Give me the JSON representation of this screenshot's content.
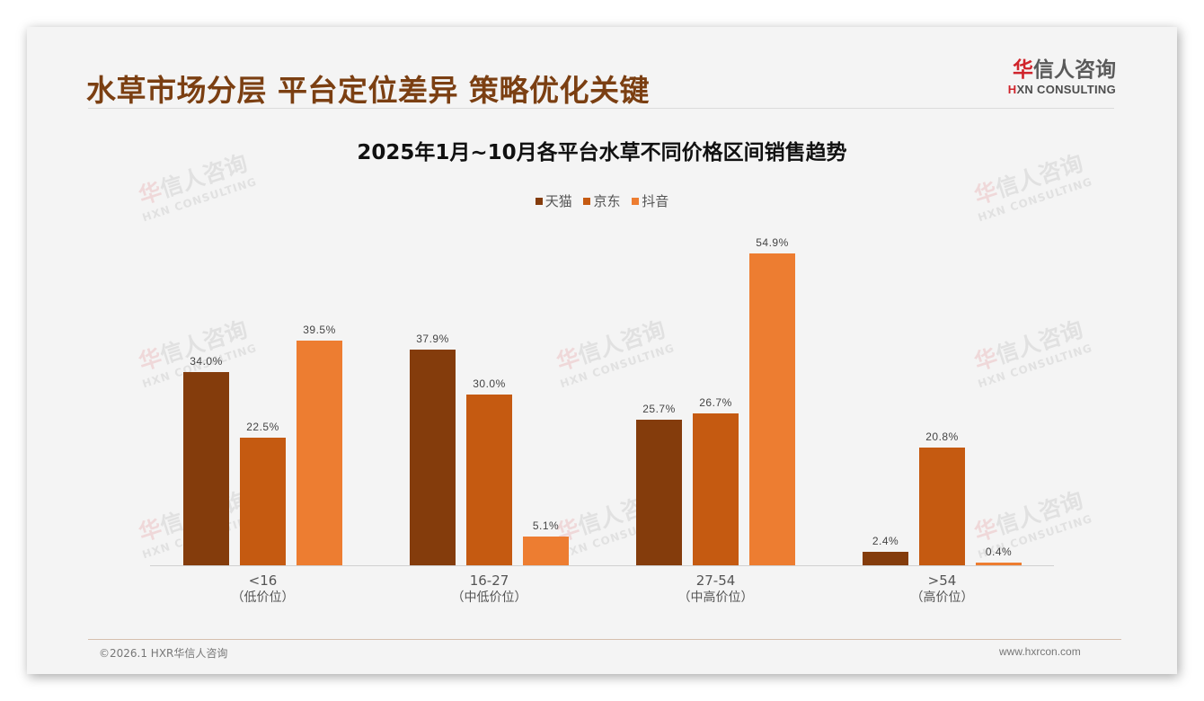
{
  "header": {
    "title": "水草市场分层 平台定位差异 策略优化关键",
    "logo": {
      "cn_mark": "华",
      "cn_rest": "信人咨询",
      "en_mark": "H",
      "en_rest": "XN CONSULTING"
    }
  },
  "colors": {
    "title": "#7b3f12",
    "tmall": "#843c0c",
    "jd": "#c55a11",
    "douyin": "#ed7d31",
    "logo_red": "#d0242b"
  },
  "watermark": {
    "cn_mark": "华",
    "cn_rest": "信人咨询",
    "en": "HXN CONSULTING"
  },
  "chart_data": {
    "type": "bar",
    "title": "2025年1月~10月各平台水草不同价格区间销售趋势",
    "xlabel": "",
    "ylabel": "",
    "ylim": [
      0,
      60
    ],
    "grid": false,
    "legend_position": "top",
    "categories": [
      "<16（低价位）",
      "16-27（中低价位）",
      "27-54（中高价位）",
      ">54（高价位）"
    ],
    "category_labels": [
      {
        "range": "<16",
        "tier": "（低价位）"
      },
      {
        "range": "16-27",
        "tier": "（中低价位）"
      },
      {
        "range": "27-54",
        "tier": "（中高价位）"
      },
      {
        "range": ">54",
        "tier": "（高价位）"
      }
    ],
    "series": [
      {
        "name": "天猫",
        "color": "#843c0c",
        "values": [
          34.0,
          37.9,
          25.7,
          2.4
        ],
        "labels": [
          "34.0%",
          "37.9%",
          "25.7%",
          "2.4%"
        ]
      },
      {
        "name": "京东",
        "color": "#c55a11",
        "values": [
          22.5,
          30.0,
          26.7,
          20.8
        ],
        "labels": [
          "22.5%",
          "30.0%",
          "26.7%",
          "20.8%"
        ]
      },
      {
        "name": "抖音",
        "color": "#ed7d31",
        "values": [
          39.5,
          5.1,
          54.9,
          0.4
        ],
        "labels": [
          "39.5%",
          "5.1%",
          "54.9%",
          "0.4%"
        ]
      }
    ]
  },
  "footer": {
    "copyright": "©2026.1 HXR华信人咨询",
    "website": "www.hxrcon.com"
  }
}
